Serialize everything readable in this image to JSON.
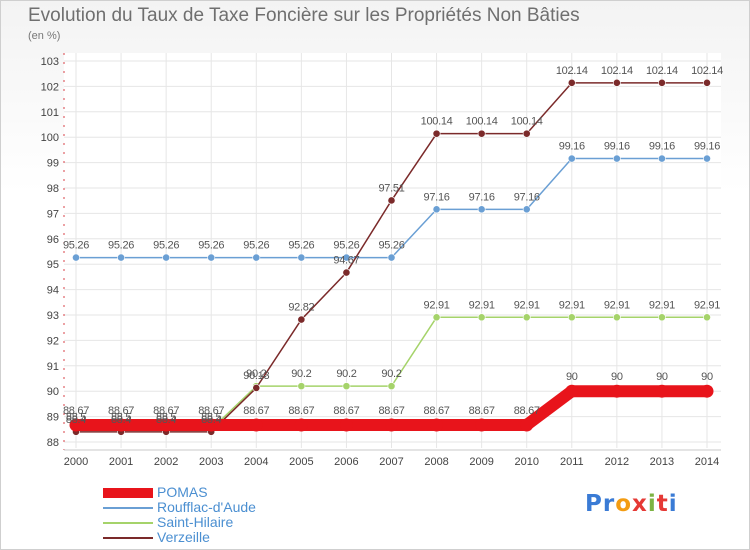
{
  "title": "Evolution du Taux de Taxe Foncière sur les Propriétés Non Bâties",
  "unit_label": "(en %)",
  "logo": {
    "letters": [
      "P",
      "r",
      "o",
      "x",
      "i",
      "t",
      "i"
    ],
    "colors": [
      "#3a7bd5",
      "#3a7bd5",
      "#f39c12",
      "#e53935",
      "#7cb342",
      "#e53935",
      "#3a7bd5"
    ]
  },
  "chart_data": {
    "type": "line",
    "title": "Evolution du Taux de Taxe Foncière sur les Propriétés Non Bâties",
    "ylabel": "(en %)",
    "xlabel": "",
    "ylim": [
      88,
      103
    ],
    "yticks": [
      "88",
      "89",
      "90",
      "91",
      "92",
      "93",
      "94",
      "95",
      "96",
      "97",
      "98",
      "99",
      "100",
      "101",
      "102",
      "103"
    ],
    "x": [
      "2000",
      "2001",
      "2002",
      "2003",
      "2004",
      "2005",
      "2006",
      "2007",
      "2008",
      "2009",
      "2010",
      "2011",
      "2012",
      "2013",
      "2014"
    ],
    "grid": true,
    "legend_position": "bottom-left",
    "series": [
      {
        "name": "POMAS",
        "color": "#e8141b",
        "emphasis": true,
        "values": [
          88.67,
          88.67,
          88.67,
          88.67,
          88.67,
          88.67,
          88.67,
          88.67,
          88.67,
          88.67,
          88.67,
          90,
          90,
          90,
          90
        ],
        "labels": [
          "88.67",
          "88.67",
          "88.67",
          "88.67",
          "88.67",
          "88.67",
          "88.67",
          "88.67",
          "88.67",
          "88.67",
          "88.67",
          "90",
          "90",
          "90",
          "90"
        ]
      },
      {
        "name": "Roufflac-d'Aude",
        "color": "#6a9fd4",
        "emphasis": false,
        "values": [
          95.26,
          95.26,
          95.26,
          95.26,
          95.26,
          95.26,
          95.26,
          95.26,
          97.16,
          97.16,
          97.16,
          99.16,
          99.16,
          99.16,
          99.16
        ],
        "labels": [
          "95.26",
          "95.26",
          "95.26",
          "95.26",
          "95.26",
          "95.26",
          "95.26",
          "95.26",
          "97.16",
          "97.16",
          "97.16",
          "99.16",
          "99.16",
          "99.16",
          "99.16"
        ]
      },
      {
        "name": "Saint-Hilaire",
        "color": "#a5d36a",
        "emphasis": false,
        "values": [
          88.5,
          88.5,
          88.5,
          88.5,
          90.2,
          90.2,
          90.2,
          90.2,
          92.91,
          92.91,
          92.91,
          92.91,
          92.91,
          92.91,
          92.91
        ],
        "labels": [
          "88.5",
          "88.5",
          "88.5",
          "88.5",
          "90.2",
          "90.2",
          "90.2",
          "90.2",
          "92.91",
          "92.91",
          "92.91",
          "92.91",
          "92.91",
          "92.91",
          "92.91"
        ]
      },
      {
        "name": "Verzeille",
        "color": "#7b2a2a",
        "emphasis": false,
        "values": [
          88.4,
          88.4,
          88.4,
          88.4,
          90.13,
          92.82,
          94.67,
          97.51,
          100.14,
          100.14,
          100.14,
          102.14,
          102.14,
          102.14,
          102.14
        ],
        "labels": [
          "88.4",
          "88.4",
          "88.4",
          "88.4",
          "90.13",
          "92.82",
          "94.67",
          "97.51",
          "100.14",
          "100.14",
          "100.14",
          "102.14",
          "102.14",
          "102.14",
          "102.14"
        ]
      }
    ]
  }
}
